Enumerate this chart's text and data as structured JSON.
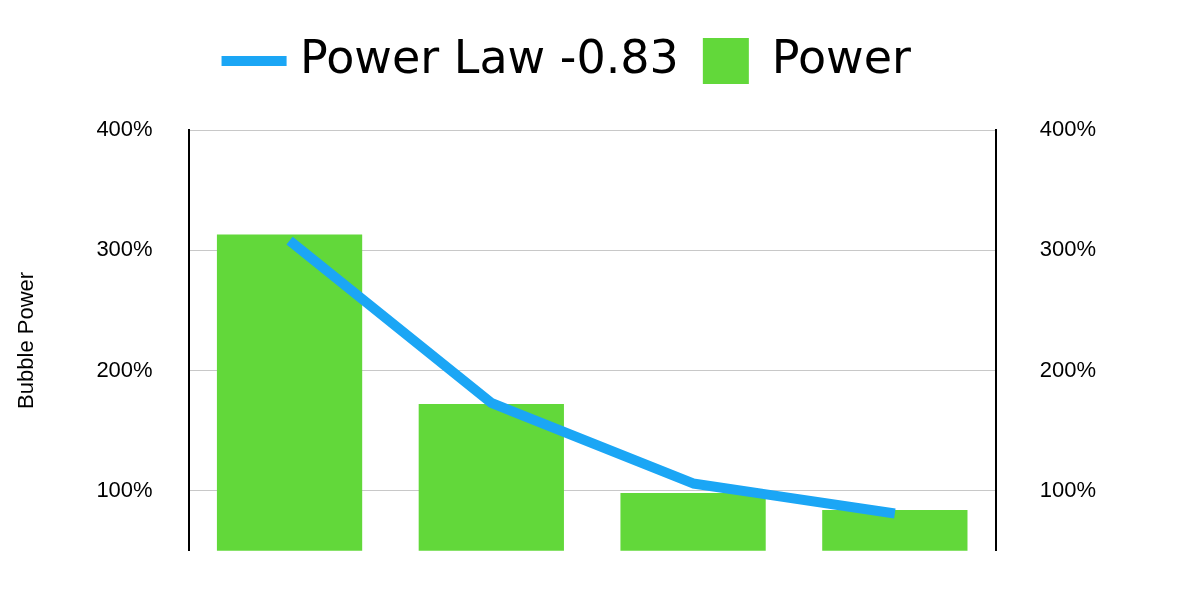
{
  "chart_data": {
    "type": "bar",
    "ylabel": "Bubble Power",
    "categories": [
      null,
      null,
      null,
      null
    ],
    "series": [
      {
        "name": "Power Law -0.83",
        "type": "line",
        "color": "#1ba6f5",
        "values": [
          308,
          173,
          106,
          81
        ]
      },
      {
        "name": "Power",
        "color": "#62d83a",
        "values": [
          313,
          172,
          98,
          84
        ]
      }
    ],
    "ylim": [
      50,
      400
    ],
    "yticks": [
      {
        "value": 100,
        "label": "100%"
      },
      {
        "value": 200,
        "label": "200%"
      },
      {
        "value": 300,
        "label": "300%"
      },
      {
        "value": 400,
        "label": "400%"
      }
    ],
    "y2lim": [
      50,
      400
    ],
    "y2ticks": [
      {
        "value": 100,
        "label": "100%"
      },
      {
        "value": 200,
        "label": "200%"
      },
      {
        "value": 300,
        "label": "300%"
      },
      {
        "value": 400,
        "label": "400%"
      }
    ],
    "grid": "y",
    "legend": "top",
    "tick_labels": "y",
    "marker": "none",
    "line_style": "solid"
  }
}
